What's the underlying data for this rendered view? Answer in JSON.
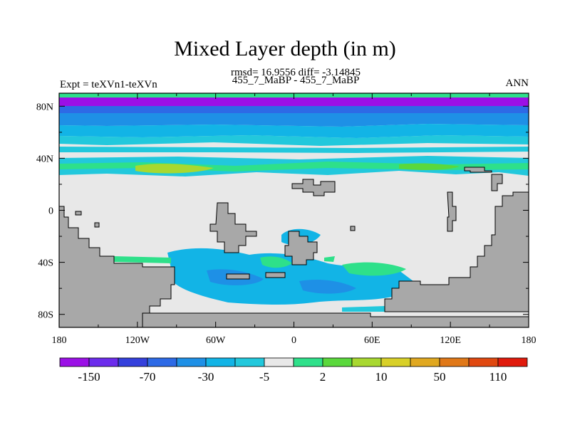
{
  "header": {
    "title": "Mixed Layer depth (in m)",
    "stats": "rmsd= 16.9556 diff= -3.14845",
    "cases": "455_7_MaBP - 455_7_MaBP",
    "experiment": "Expt = teXVn1-teXVn",
    "season": "ANN"
  },
  "chart_data": {
    "type": "heatmap",
    "title": "Mixed Layer depth (in m)",
    "x_tick_labels": [
      "180",
      "120W",
      "60W",
      "0",
      "60E",
      "120E",
      "180"
    ],
    "x_tick_values": [
      -180,
      -120,
      -60,
      0,
      60,
      120,
      180
    ],
    "y_tick_labels": [
      "80N",
      "40N",
      "0",
      "40S",
      "80S"
    ],
    "y_tick_values": [
      80,
      40,
      0,
      -40,
      -80
    ],
    "xlim": [
      -180,
      180
    ],
    "ylim": [
      -90,
      90
    ],
    "colorbar": {
      "tick_labels": [
        "-150",
        "-70",
        "-30",
        "-5",
        "2",
        "10",
        "50",
        "110"
      ],
      "colors": [
        "#9b10e6",
        "#6c2cec",
        "#3440dc",
        "#2d6ae6",
        "#1e90e6",
        "#12b4e6",
        "#22c8dc",
        "#e8e8e8",
        "#2ee08a",
        "#5ad83c",
        "#a8d830",
        "#d8d028",
        "#e0a820",
        "#e07818",
        "#e04810",
        "#e01a0c"
      ]
    },
    "regions": [
      {
        "name": "arctic_strong_negative",
        "value_class": "-150"
      },
      {
        "name": "northern_high_lat_band",
        "value_class": "-30 to -5"
      },
      {
        "name": "northern_midlat_band",
        "value_class": "-5 to 10"
      },
      {
        "name": "tropics_near_zero",
        "value_class": "-5 to 2"
      },
      {
        "name": "southern_ocean_mixed",
        "value_class": "-30 to 10"
      },
      {
        "name": "land",
        "value_class": "masked"
      }
    ]
  }
}
